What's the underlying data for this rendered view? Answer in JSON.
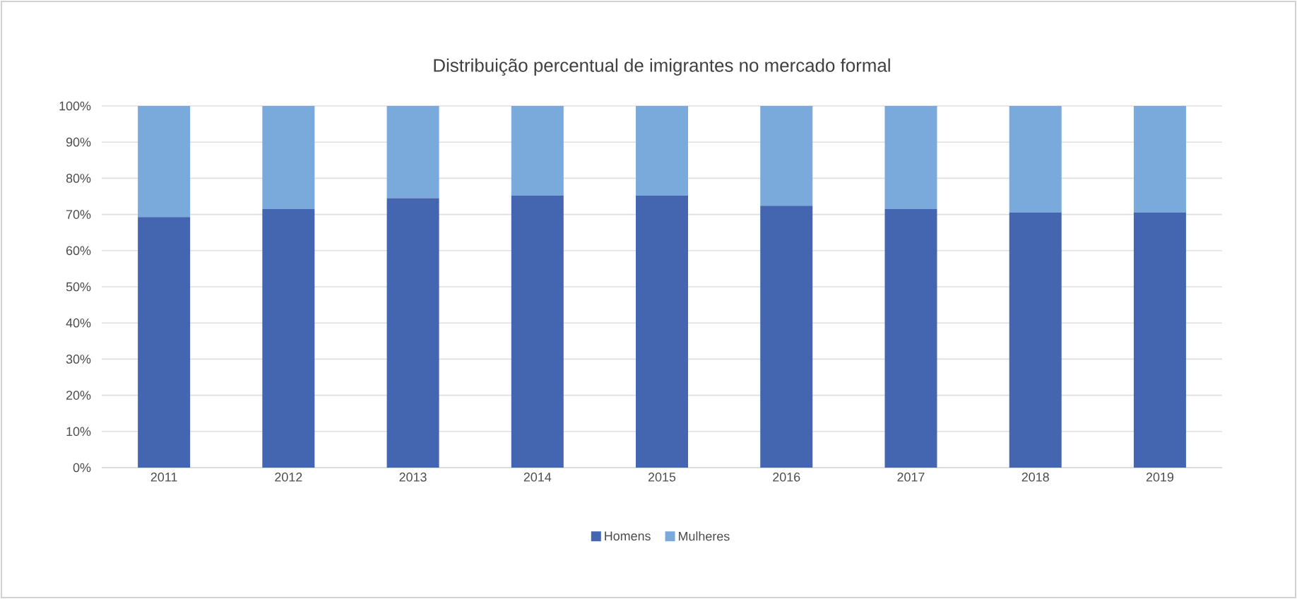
{
  "chart_data": {
    "type": "bar",
    "title": "Distribuição percentual de imigrantes no mercado formal",
    "categories": [
      "2011",
      "2012",
      "2013",
      "2014",
      "2015",
      "2016",
      "2017",
      "2018",
      "2019"
    ],
    "stacked": true,
    "series": [
      {
        "name": "Homens",
        "color": "#4466b0",
        "values": [
          69.3,
          71.5,
          74.5,
          75.2,
          75.2,
          72.4,
          71.5,
          70.5,
          70.5
        ]
      },
      {
        "name": "Mulheres",
        "color": "#7aaadc",
        "values": [
          30.7,
          28.5,
          25.5,
          24.8,
          24.8,
          27.6,
          28.5,
          29.5,
          29.5
        ]
      }
    ],
    "ylim": [
      0,
      100
    ],
    "yticks": [
      {
        "value": 0,
        "label": "0%"
      },
      {
        "value": 10,
        "label": "10%"
      },
      {
        "value": 20,
        "label": "20%"
      },
      {
        "value": 30,
        "label": "30%"
      },
      {
        "value": 40,
        "label": "40%"
      },
      {
        "value": 50,
        "label": "50%"
      },
      {
        "value": 60,
        "label": "60%"
      },
      {
        "value": 70,
        "label": "70%"
      },
      {
        "value": 80,
        "label": "80%"
      },
      {
        "value": 90,
        "label": "90%"
      },
      {
        "value": 100,
        "label": "100%"
      }
    ],
    "grid": "y",
    "legend": "bottom"
  }
}
